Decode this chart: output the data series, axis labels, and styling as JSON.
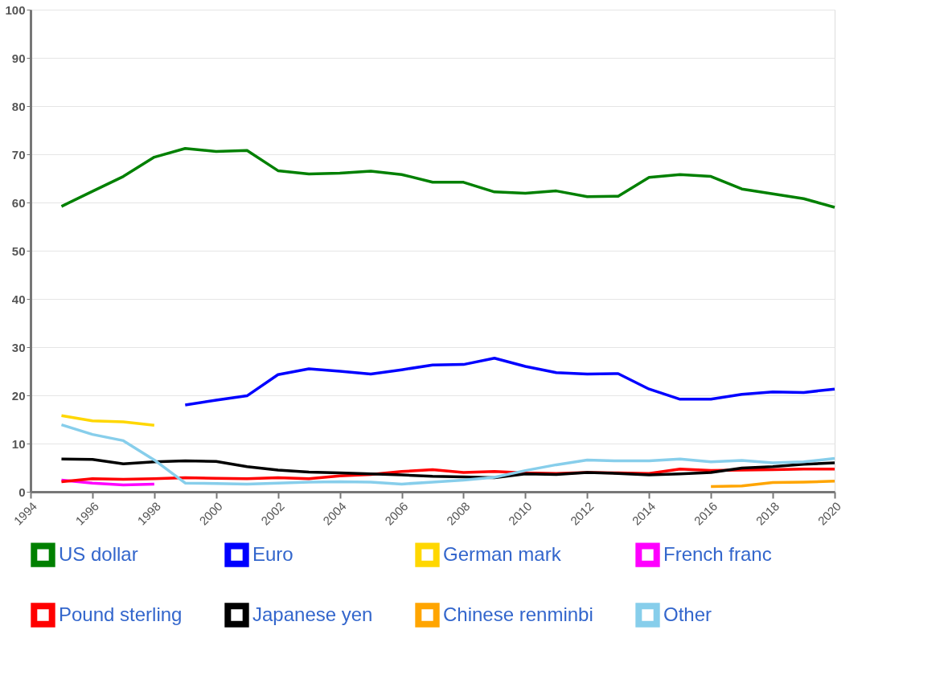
{
  "chart_data": {
    "type": "line",
    "xlim": [
      1994,
      2020
    ],
    "xticks": [
      1994,
      1996,
      1998,
      2000,
      2002,
      2004,
      2006,
      2008,
      2010,
      2012,
      2014,
      2016,
      2018,
      2020
    ],
    "ylim": [
      0,
      100
    ],
    "yticks": [
      0,
      10,
      20,
      30,
      40,
      50,
      60,
      70,
      80,
      90,
      100
    ],
    "grid": "y",
    "legend": "bottom",
    "marker": "none",
    "line_style": "solid",
    "series": [
      {
        "name": "US dollar",
        "color": "#008000",
        "x": [
          1995,
          1996,
          1997,
          1998,
          1999,
          2000,
          2001,
          2002,
          2003,
          2004,
          2005,
          2006,
          2007,
          2008,
          2009,
          2010,
          2011,
          2012,
          2013,
          2014,
          2015,
          2016,
          2017,
          2018,
          2019,
          2020
        ],
        "values": [
          59.2,
          62.3,
          65.4,
          69.4,
          71.2,
          70.6,
          70.8,
          66.6,
          65.9,
          66.1,
          66.5,
          65.8,
          64.2,
          64.2,
          62.2,
          61.9,
          62.4,
          61.2,
          61.3,
          65.2,
          65.8,
          65.4,
          62.8,
          61.8,
          60.8,
          59.0
        ]
      },
      {
        "name": "Euro",
        "color": "#0000ff",
        "x": [
          1999,
          2000,
          2001,
          2002,
          2003,
          2004,
          2005,
          2006,
          2007,
          2008,
          2009,
          2010,
          2011,
          2012,
          2013,
          2014,
          2015,
          2016,
          2017,
          2018,
          2019,
          2020
        ],
        "values": [
          18.0,
          19.0,
          19.9,
          24.3,
          25.5,
          25.0,
          24.4,
          25.3,
          26.3,
          26.4,
          27.7,
          26.0,
          24.7,
          24.4,
          24.5,
          21.3,
          19.2,
          19.2,
          20.2,
          20.7,
          20.6,
          21.3
        ]
      },
      {
        "name": "German mark",
        "color": "#ffd700",
        "x": [
          1995,
          1996,
          1997,
          1998
        ],
        "values": [
          15.8,
          14.7,
          14.5,
          13.8
        ]
      },
      {
        "name": "French franc",
        "color": "#ff00ff",
        "x": [
          1995,
          1996,
          1997,
          1998
        ],
        "values": [
          2.4,
          1.8,
          1.4,
          1.6
        ]
      },
      {
        "name": "Pound sterling",
        "color": "#ff0000",
        "x": [
          1995,
          1996,
          1997,
          1998,
          1999,
          2000,
          2001,
          2002,
          2003,
          2004,
          2005,
          2006,
          2007,
          2008,
          2009,
          2010,
          2011,
          2012,
          2013,
          2014,
          2015,
          2016,
          2017,
          2018,
          2019,
          2020
        ],
        "values": [
          2.1,
          2.7,
          2.6,
          2.7,
          2.9,
          2.8,
          2.7,
          2.9,
          2.7,
          3.3,
          3.6,
          4.2,
          4.6,
          4.0,
          4.2,
          3.9,
          3.8,
          4.0,
          3.9,
          3.8,
          4.7,
          4.4,
          4.5,
          4.6,
          4.7,
          4.7
        ]
      },
      {
        "name": "Japanese yen",
        "color": "#000000",
        "x": [
          1995,
          1996,
          1997,
          1998,
          1999,
          2000,
          2001,
          2002,
          2003,
          2004,
          2005,
          2006,
          2007,
          2008,
          2009,
          2010,
          2011,
          2012,
          2013,
          2014,
          2015,
          2016,
          2017,
          2018,
          2019,
          2020
        ],
        "values": [
          6.8,
          6.7,
          5.8,
          6.2,
          6.4,
          6.3,
          5.2,
          4.5,
          4.1,
          3.9,
          3.7,
          3.5,
          3.2,
          3.1,
          2.9,
          3.7,
          3.6,
          4.0,
          3.8,
          3.5,
          3.7,
          4.0,
          4.9,
          5.2,
          5.7,
          6.0
        ]
      },
      {
        "name": "Chinese renminbi",
        "color": "#ffa500",
        "x": [
          2016,
          2017,
          2018,
          2019,
          2020
        ],
        "values": [
          1.1,
          1.2,
          1.9,
          2.0,
          2.2
        ]
      },
      {
        "name": "Other",
        "color": "#87ceeb",
        "x": [
          1995,
          1996,
          1997,
          1998,
          1999,
          2000,
          2001,
          2002,
          2003,
          2004,
          2005,
          2006,
          2007,
          2008,
          2009,
          2010,
          2011,
          2012,
          2013,
          2014,
          2015,
          2016,
          2017,
          2018,
          2019,
          2020
        ],
        "values": [
          13.9,
          11.9,
          10.6,
          6.6,
          1.8,
          1.7,
          1.6,
          1.8,
          2.0,
          2.1,
          2.0,
          1.6,
          2.0,
          2.4,
          3.0,
          4.4,
          5.6,
          6.6,
          6.4,
          6.4,
          6.8,
          6.2,
          6.5,
          6.0,
          6.2,
          6.9
        ]
      }
    ]
  }
}
